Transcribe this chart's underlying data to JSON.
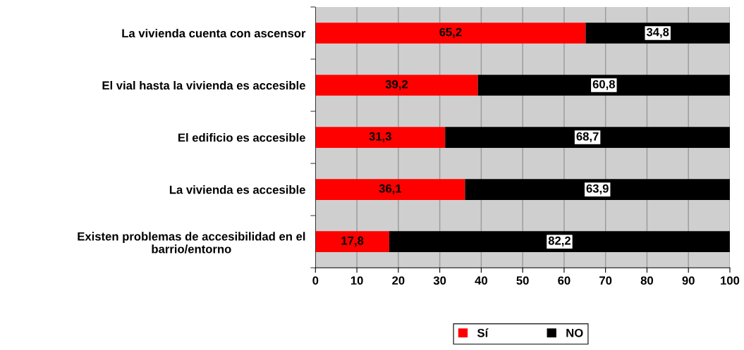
{
  "chart_data": {
    "type": "bar",
    "orientation": "horizontal",
    "stacked": true,
    "categories": [
      "La vivienda cuenta con ascensor",
      "El vial hasta la vivienda es accesible",
      "El edificio es accesible",
      "La vivienda es accesible",
      "Existen problemas de accesibilidad en el barrio/entorno"
    ],
    "series": [
      {
        "name": "Sí",
        "color": "#ff0000",
        "values": [
          65.2,
          39.2,
          31.3,
          36.1,
          17.8
        ],
        "value_labels": [
          "65,2",
          "39,2",
          "31,3",
          "36,1",
          "17,8"
        ]
      },
      {
        "name": "NO",
        "color": "#000000",
        "values": [
          34.8,
          60.8,
          68.7,
          63.9,
          82.2
        ],
        "value_labels": [
          "34,8",
          "60,8",
          "68,7",
          "63,9",
          "82,2"
        ]
      }
    ],
    "xlim": [
      0,
      100
    ],
    "xticks": [
      0,
      10,
      20,
      30,
      40,
      50,
      60,
      70,
      80,
      90,
      100
    ],
    "grid": "x",
    "legend": "bottom"
  }
}
